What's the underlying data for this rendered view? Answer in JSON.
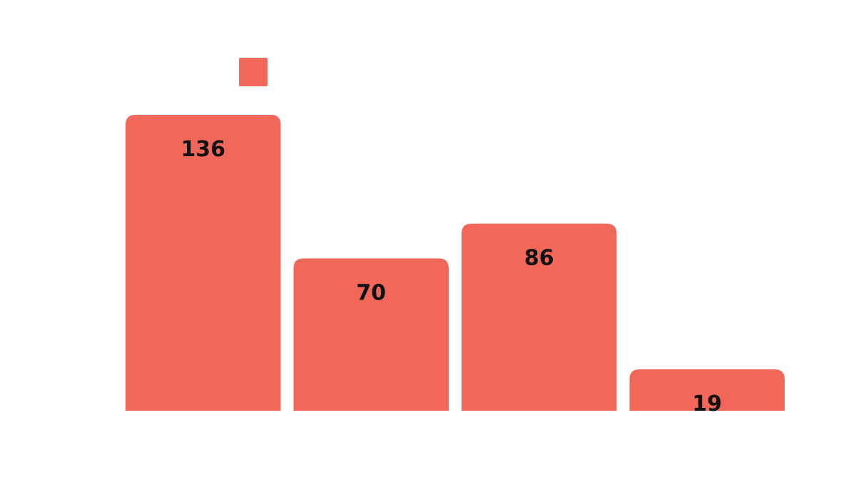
{
  "chart_data": {
    "type": "bar",
    "categories": [
      "",
      "",
      "",
      ""
    ],
    "values": [
      136,
      70,
      86,
      19
    ],
    "series": [
      {
        "values": [
          136,
          70,
          86,
          19
        ]
      }
    ],
    "title": "",
    "xlabel": "",
    "ylabel": "",
    "ylim": [
      0,
      136
    ],
    "grid": false,
    "legend": {
      "placement": "top-left",
      "entries": [
        ""
      ]
    },
    "colors": {
      "bar": "#f1685a",
      "label": "#111111",
      "background": "#ffffff"
    }
  }
}
